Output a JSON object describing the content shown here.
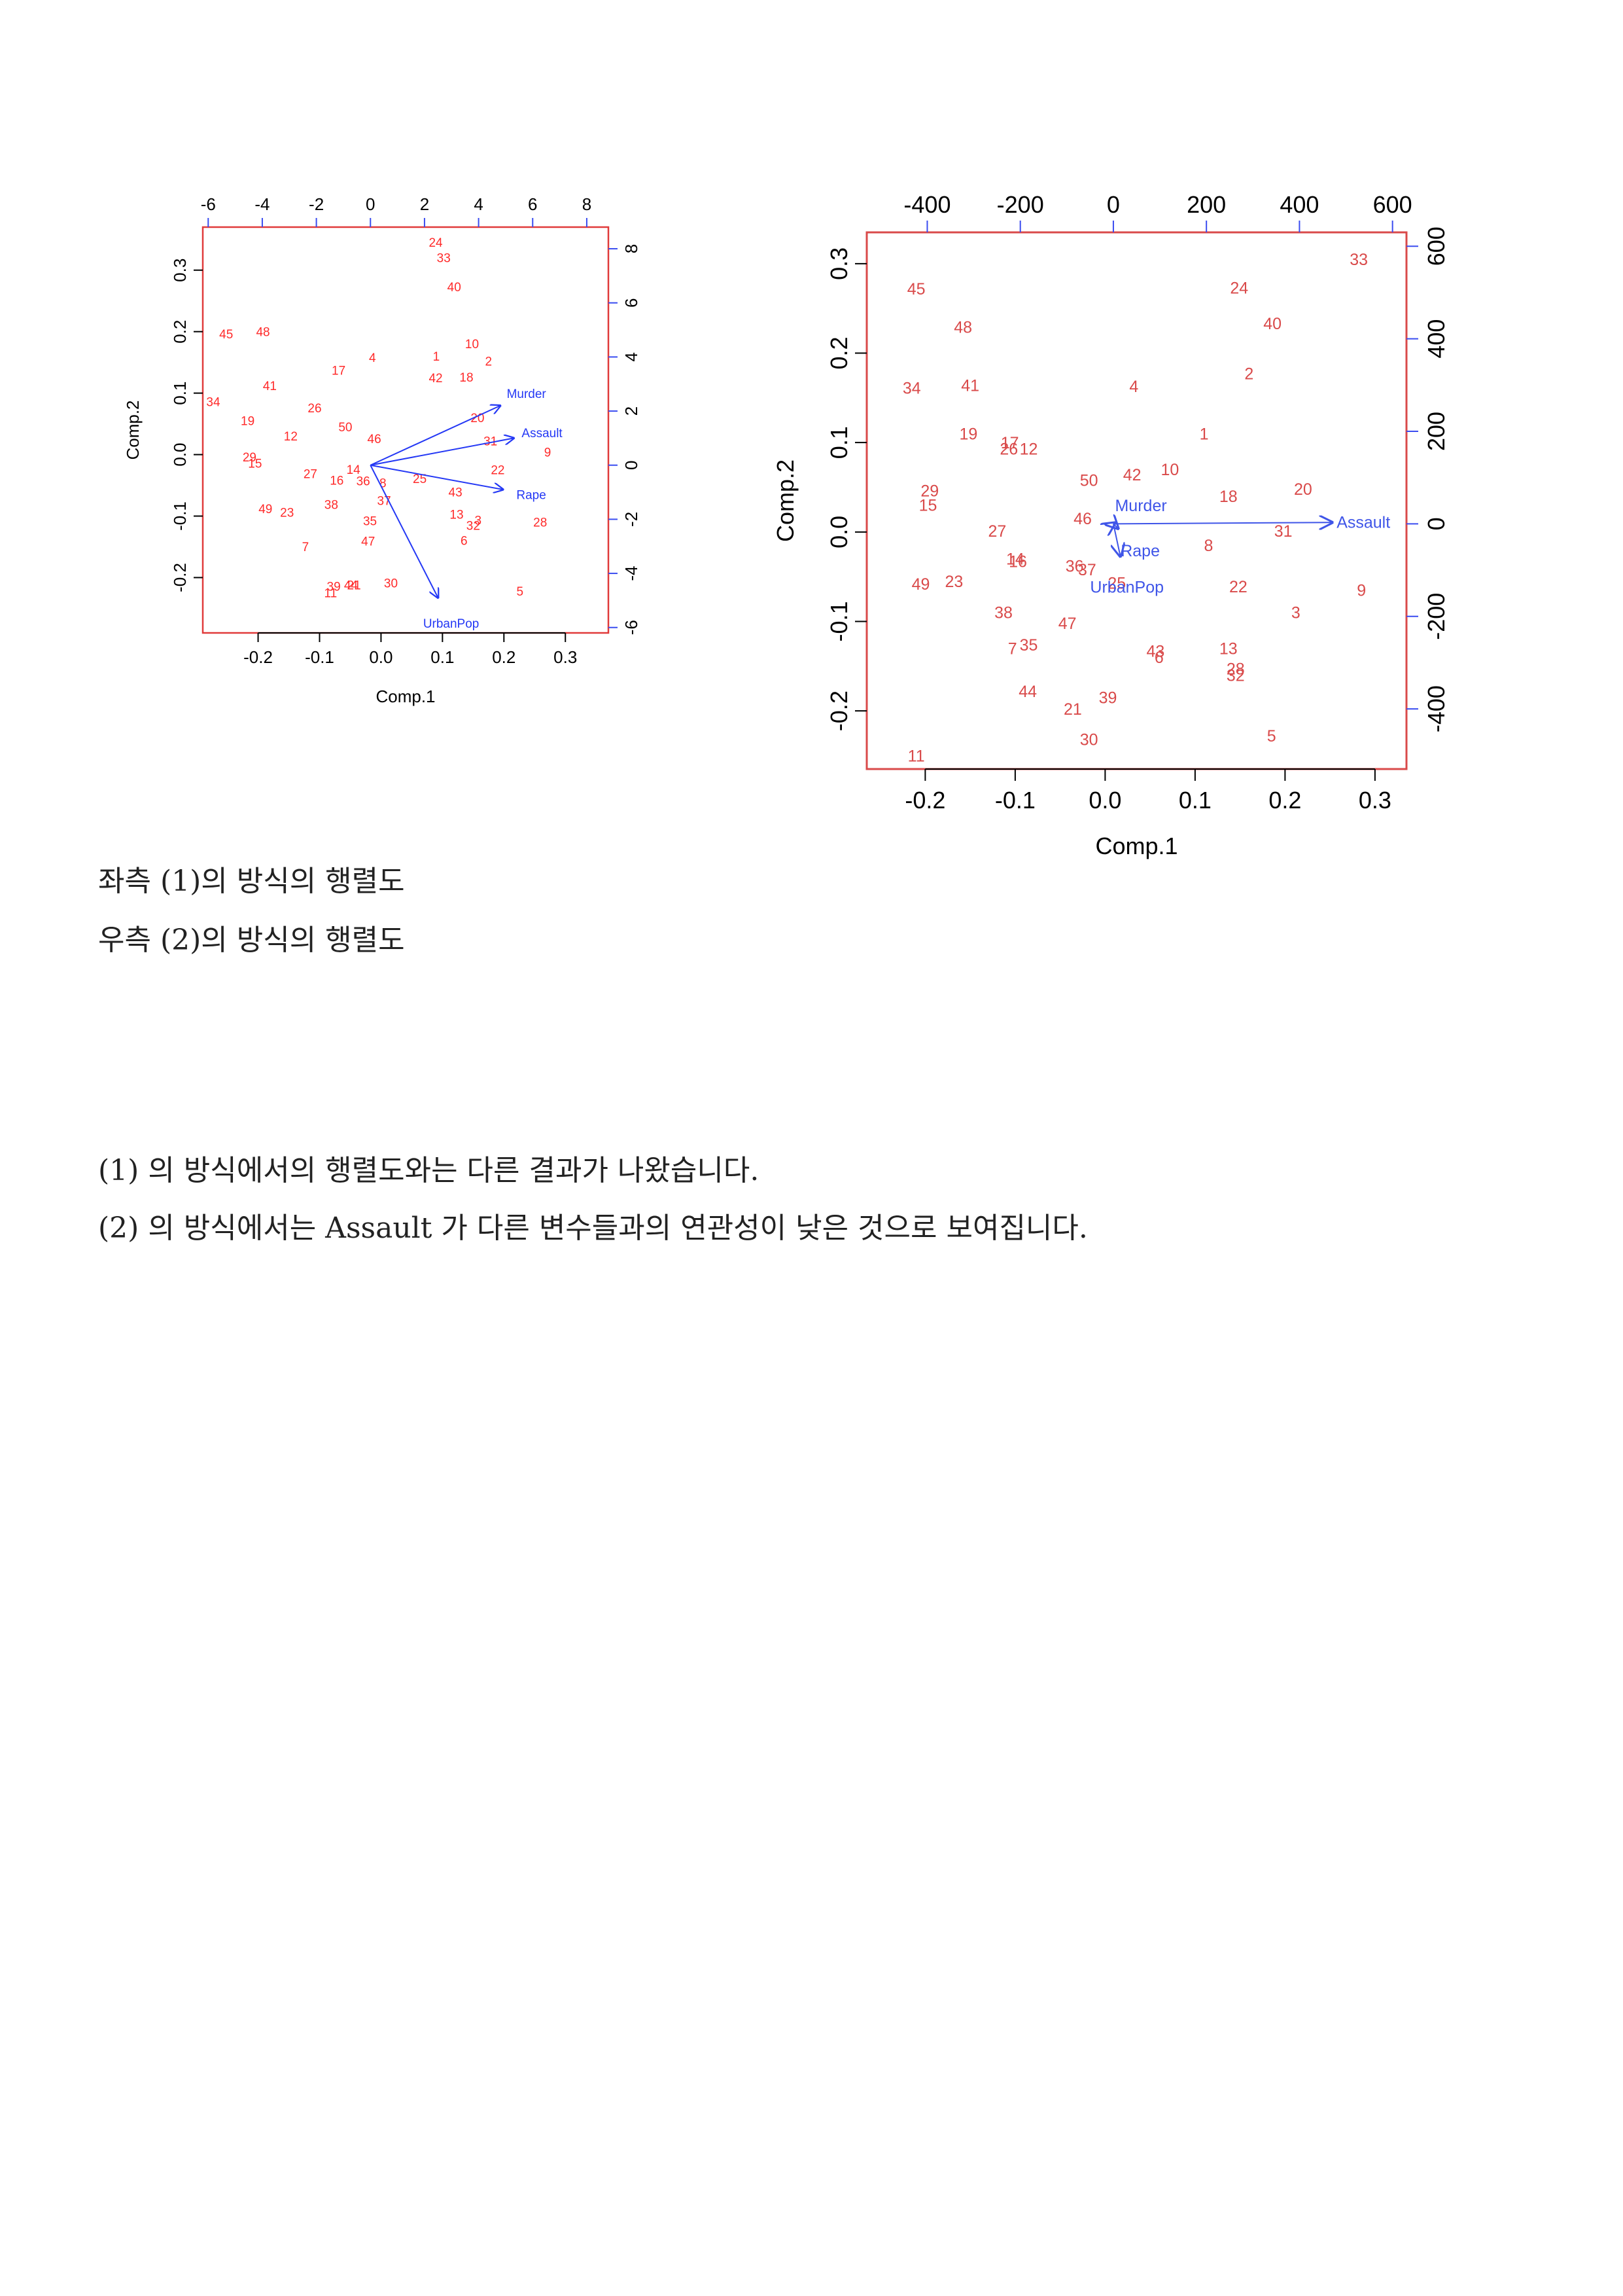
{
  "captions": {
    "left": "좌측 (1)의 방식의 행렬도",
    "right": "우측 (2)의 방식의 행렬도"
  },
  "notes": [
    "(1) 의 방식에서의 행렬도와는 다른 결과가 나왔습니다.",
    "(2) 의 방식에서는 Assault 가 다른 변수들과의 연관성이 낮은 것으로 보여집니다."
  ],
  "chart_data": [
    {
      "type": "scatter",
      "subtype": "biplot",
      "xlabel": "Comp.1",
      "ylabel": "Comp.2",
      "xlim": [
        -0.29,
        0.37
      ],
      "ylim": [
        -0.29,
        0.37
      ],
      "x_ticks": [
        -0.2,
        -0.1,
        0.0,
        0.1,
        0.2,
        0.3
      ],
      "y_ticks": [
        -0.2,
        -0.1,
        0.0,
        0.1,
        0.2,
        0.3
      ],
      "top_axis": {
        "lim": [
          -6.2,
          8.8
        ],
        "ticks": [
          -6,
          -4,
          -2,
          0,
          2,
          4,
          6,
          8
        ]
      },
      "right_axis": {
        "lim": [
          -6.2,
          8.8
        ],
        "ticks": [
          -6,
          -4,
          -2,
          0,
          2,
          4,
          6,
          8
        ]
      },
      "point_color": "#ff2a2a",
      "arrow_color": "#2438f5",
      "frame_color": "#e03a3a",
      "right_axis_color": "#3a4cf0",
      "points": [
        {
          "label": "1",
          "x": 0.09,
          "y": 0.16
        },
        {
          "label": "2",
          "x": 0.175,
          "y": 0.152
        },
        {
          "label": "3",
          "x": 0.158,
          "y": -0.107
        },
        {
          "label": "4",
          "x": -0.014,
          "y": 0.158
        },
        {
          "label": "5",
          "x": 0.226,
          "y": -0.222
        },
        {
          "label": "6",
          "x": 0.135,
          "y": -0.14
        },
        {
          "label": "7",
          "x": -0.123,
          "y": -0.15
        },
        {
          "label": "8",
          "x": 0.003,
          "y": -0.046
        },
        {
          "label": "9",
          "x": 0.271,
          "y": 0.004
        },
        {
          "label": "10",
          "x": 0.148,
          "y": 0.18
        },
        {
          "label": "11",
          "x": -0.082,
          "y": -0.225
        },
        {
          "label": "12",
          "x": -0.147,
          "y": 0.03
        },
        {
          "label": "13",
          "x": 0.123,
          "y": -0.097
        },
        {
          "label": "14",
          "x": -0.045,
          "y": -0.024
        },
        {
          "label": "15",
          "x": -0.205,
          "y": -0.014
        },
        {
          "label": "16",
          "x": -0.072,
          "y": -0.042
        },
        {
          "label": "17",
          "x": -0.069,
          "y": 0.137
        },
        {
          "label": "18",
          "x": 0.139,
          "y": 0.126
        },
        {
          "label": "19",
          "x": -0.217,
          "y": 0.055
        },
        {
          "label": "20",
          "x": 0.157,
          "y": 0.06
        },
        {
          "label": "21",
          "x": -0.044,
          "y": -0.212
        },
        {
          "label": "22",
          "x": 0.19,
          "y": -0.025
        },
        {
          "label": "23",
          "x": -0.153,
          "y": -0.094
        },
        {
          "label": "24",
          "x": 0.089,
          "y": 0.345
        },
        {
          "label": "25",
          "x": 0.063,
          "y": -0.039
        },
        {
          "label": "26",
          "x": -0.108,
          "y": 0.076
        },
        {
          "label": "27",
          "x": -0.115,
          "y": -0.031
        },
        {
          "label": "28",
          "x": 0.259,
          "y": -0.11
        },
        {
          "label": "29",
          "x": -0.214,
          "y": -0.004
        },
        {
          "label": "30",
          "x": 0.016,
          "y": -0.209
        },
        {
          "label": "31",
          "x": 0.178,
          "y": 0.022
        },
        {
          "label": "32",
          "x": 0.15,
          "y": -0.115
        },
        {
          "label": "33",
          "x": 0.102,
          "y": 0.32
        },
        {
          "label": "34",
          "x": -0.273,
          "y": 0.086
        },
        {
          "label": "35",
          "x": -0.018,
          "y": -0.108
        },
        {
          "label": "36",
          "x": -0.029,
          "y": -0.043
        },
        {
          "label": "37",
          "x": 0.005,
          "y": -0.075
        },
        {
          "label": "38",
          "x": -0.081,
          "y": -0.081
        },
        {
          "label": "39",
          "x": -0.077,
          "y": -0.214
        },
        {
          "label": "40",
          "x": 0.119,
          "y": 0.273
        },
        {
          "label": "41",
          "x": -0.181,
          "y": 0.112
        },
        {
          "label": "42",
          "x": 0.089,
          "y": 0.125
        },
        {
          "label": "43",
          "x": 0.121,
          "y": -0.061
        },
        {
          "label": "44",
          "x": -0.049,
          "y": -0.212
        },
        {
          "label": "45",
          "x": -0.252,
          "y": 0.196
        },
        {
          "label": "46",
          "x": -0.011,
          "y": 0.026
        },
        {
          "label": "47",
          "x": -0.021,
          "y": -0.141
        },
        {
          "label": "48",
          "x": -0.192,
          "y": 0.2
        },
        {
          "label": "49",
          "x": -0.188,
          "y": -0.088
        },
        {
          "label": "50",
          "x": -0.058,
          "y": 0.045
        }
      ],
      "vectors": [
        {
          "name": "Murder",
          "x": 4.8,
          "y": 2.2
        },
        {
          "name": "Assault",
          "x": 5.3,
          "y": 1.0
        },
        {
          "name": "Rape",
          "x": 4.9,
          "y": -0.9
        },
        {
          "name": "UrbanPop",
          "x": 2.5,
          "y": -4.9
        }
      ]
    },
    {
      "type": "scatter",
      "subtype": "biplot",
      "xlabel": "Comp.1",
      "ylabel": "Comp.2",
      "xlim": [
        -0.265,
        0.335
      ],
      "ylim": [
        -0.265,
        0.335
      ],
      "x_ticks": [
        -0.2,
        -0.1,
        0.0,
        0.1,
        0.2,
        0.3
      ],
      "y_ticks": [
        -0.2,
        -0.1,
        0.0,
        0.1,
        0.2,
        0.3
      ],
      "top_axis": {
        "lim": [
          -530,
          630
        ],
        "ticks": [
          -400,
          -200,
          0,
          200,
          400,
          600
        ]
      },
      "right_axis": {
        "lim": [
          -530,
          630
        ],
        "ticks": [
          -400,
          -200,
          0,
          200,
          400,
          600
        ]
      },
      "point_color": "#d94a4a",
      "arrow_color": "#3f55e8",
      "frame_color": "#d94a4a",
      "right_axis_color": "#3a4cf0",
      "points": [
        {
          "label": "1",
          "x": 0.11,
          "y": 0.11
        },
        {
          "label": "2",
          "x": 0.16,
          "y": 0.177
        },
        {
          "label": "3",
          "x": 0.212,
          "y": -0.09
        },
        {
          "label": "4",
          "x": 0.032,
          "y": 0.163
        },
        {
          "label": "5",
          "x": 0.185,
          "y": -0.228
        },
        {
          "label": "6",
          "x": 0.06,
          "y": -0.14
        },
        {
          "label": "7",
          "x": -0.103,
          "y": -0.13
        },
        {
          "label": "8",
          "x": 0.115,
          "y": -0.015
        },
        {
          "label": "9",
          "x": 0.285,
          "y": -0.065
        },
        {
          "label": "10",
          "x": 0.072,
          "y": 0.07
        },
        {
          "label": "11",
          "x": -0.21,
          "y": -0.25
        },
        {
          "label": "12",
          "x": -0.085,
          "y": 0.093
        },
        {
          "label": "13",
          "x": 0.137,
          "y": -0.13
        },
        {
          "label": "14",
          "x": -0.1,
          "y": -0.03
        },
        {
          "label": "15",
          "x": -0.197,
          "y": 0.03
        },
        {
          "label": "16",
          "x": -0.097,
          "y": -0.033
        },
        {
          "label": "17",
          "x": -0.106,
          "y": 0.1
        },
        {
          "label": "18",
          "x": 0.137,
          "y": 0.04
        },
        {
          "label": "19",
          "x": -0.152,
          "y": 0.11
        },
        {
          "label": "20",
          "x": 0.22,
          "y": 0.048
        },
        {
          "label": "21",
          "x": -0.036,
          "y": -0.198
        },
        {
          "label": "22",
          "x": 0.148,
          "y": -0.061
        },
        {
          "label": "23",
          "x": -0.168,
          "y": -0.055
        },
        {
          "label": "24",
          "x": 0.149,
          "y": 0.273
        },
        {
          "label": "25",
          "x": 0.013,
          "y": -0.057
        },
        {
          "label": "26",
          "x": -0.107,
          "y": 0.093
        },
        {
          "label": "27",
          "x": -0.12,
          "y": 0.001
        },
        {
          "label": "28",
          "x": 0.145,
          "y": -0.153
        },
        {
          "label": "29",
          "x": -0.195,
          "y": 0.046
        },
        {
          "label": "30",
          "x": -0.018,
          "y": -0.232
        },
        {
          "label": "31",
          "x": 0.198,
          "y": 0.001
        },
        {
          "label": "32",
          "x": 0.145,
          "y": -0.16
        },
        {
          "label": "33",
          "x": 0.282,
          "y": 0.305
        },
        {
          "label": "34",
          "x": -0.215,
          "y": 0.161
        },
        {
          "label": "35",
          "x": -0.085,
          "y": -0.126
        },
        {
          "label": "36",
          "x": -0.034,
          "y": -0.038
        },
        {
          "label": "37",
          "x": -0.02,
          "y": -0.042
        },
        {
          "label": "38",
          "x": -0.113,
          "y": -0.09
        },
        {
          "label": "39",
          "x": 0.003,
          "y": -0.185
        },
        {
          "label": "40",
          "x": 0.186,
          "y": 0.233
        },
        {
          "label": "41",
          "x": -0.15,
          "y": 0.164
        },
        {
          "label": "42",
          "x": 0.03,
          "y": 0.064
        },
        {
          "label": "43",
          "x": 0.056,
          "y": -0.133
        },
        {
          "label": "44",
          "x": -0.086,
          "y": -0.178
        },
        {
          "label": "45",
          "x": -0.21,
          "y": 0.272
        },
        {
          "label": "46",
          "x": -0.025,
          "y": 0.015
        },
        {
          "label": "47",
          "x": -0.042,
          "y": -0.102
        },
        {
          "label": "48",
          "x": -0.158,
          "y": 0.229
        },
        {
          "label": "49",
          "x": -0.205,
          "y": -0.058
        },
        {
          "label": "50",
          "x": -0.018,
          "y": 0.058
        }
      ],
      "vectors": [
        {
          "name": "Murder",
          "x": 3,
          "y": 2
        },
        {
          "name": "Assault",
          "x": 470,
          "y": 3
        },
        {
          "name": "Rape",
          "x": 10,
          "y": -10
        },
        {
          "name": "UrbanPop",
          "x": 15,
          "y": -70
        }
      ]
    }
  ]
}
